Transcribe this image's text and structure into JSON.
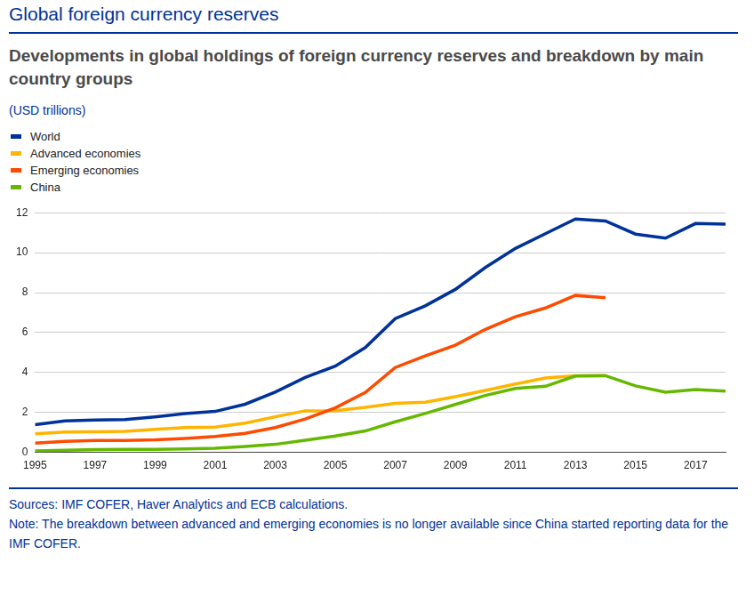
{
  "chart_data": {
    "type": "line",
    "title": "Global foreign currency reserves",
    "subtitle": "Developments in global holdings of foreign currency reserves and breakdown by main country groups",
    "ylabel": "(USD trillions)",
    "annotations": [
      "Sources: IMF COFER, Haver Analytics and ECB calculations.",
      "Note: The breakdown between advanced and emerging economies is no longer available since China started reporting data for the IMF COFER."
    ],
    "x": [
      1995,
      1996,
      1997,
      1998,
      1999,
      2000,
      2001,
      2002,
      2003,
      2004,
      2005,
      2006,
      2007,
      2008,
      2009,
      2010,
      2011,
      2012,
      2013,
      2014,
      2015,
      2016,
      2017,
      2018
    ],
    "series": [
      {
        "name": "World",
        "color": "#003299",
        "values": [
          1.39,
          1.57,
          1.62,
          1.64,
          1.78,
          1.94,
          2.05,
          2.41,
          3.02,
          3.75,
          4.32,
          5.25,
          6.7,
          7.34,
          8.16,
          9.26,
          10.21,
          10.95,
          11.69,
          11.59,
          10.93,
          10.73,
          11.46,
          11.43
        ]
      },
      {
        "name": "Advanced economies",
        "color": "#ffb400",
        "values": [
          0.93,
          1.02,
          1.03,
          1.05,
          1.15,
          1.24,
          1.26,
          1.46,
          1.78,
          2.08,
          2.09,
          2.25,
          2.45,
          2.51,
          2.79,
          3.1,
          3.42,
          3.72,
          3.84,
          3.85,
          null,
          null,
          null,
          null
        ]
      },
      {
        "name": "Emerging economies",
        "color": "#ff4b00",
        "values": [
          0.46,
          0.55,
          0.59,
          0.6,
          0.63,
          0.7,
          0.79,
          0.95,
          1.24,
          1.67,
          2.23,
          3.0,
          4.25,
          4.83,
          5.37,
          6.16,
          6.79,
          7.23,
          7.86,
          7.74,
          null,
          null,
          null,
          null
        ]
      },
      {
        "name": "China",
        "color": "#65b800",
        "values": [
          0.07,
          0.1,
          0.14,
          0.15,
          0.15,
          0.17,
          0.21,
          0.29,
          0.4,
          0.61,
          0.82,
          1.07,
          1.53,
          1.95,
          2.4,
          2.85,
          3.2,
          3.31,
          3.82,
          3.84,
          3.33,
          3.01,
          3.14,
          3.07
        ]
      }
    ],
    "xlim": [
      1995,
      2018
    ],
    "xticks": [
      1995,
      1997,
      1999,
      2001,
      2003,
      2005,
      2007,
      2009,
      2011,
      2013,
      2015,
      2017
    ],
    "ylim": [
      0,
      12
    ],
    "yticks": [
      0,
      2,
      4,
      6,
      8,
      10,
      12
    ],
    "grid": "y",
    "legend": "top-left"
  }
}
